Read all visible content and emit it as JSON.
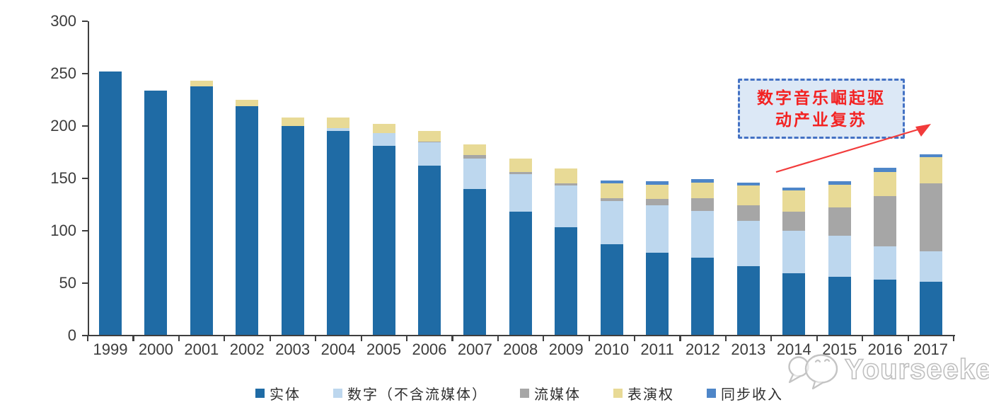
{
  "chart_data": {
    "type": "bar",
    "stacked": true,
    "title": "",
    "xlabel": "",
    "ylabel": "",
    "ylim": [
      0,
      300
    ],
    "y_ticks": [
      0,
      50,
      100,
      150,
      200,
      250,
      300
    ],
    "grid": false,
    "legend_position": "bottom",
    "categories": [
      "1999",
      "2000",
      "2001",
      "2002",
      "2003",
      "2004",
      "2005",
      "2006",
      "2007",
      "2008",
      "2009",
      "2010",
      "2011",
      "2012",
      "2013",
      "2014",
      "2015",
      "2016",
      "2017"
    ],
    "series": [
      {
        "key": "physical",
        "name": "实体",
        "color": "#1f6ba5",
        "values": [
          252,
          234,
          238,
          219,
          200,
          195,
          181,
          162,
          140,
          118,
          103,
          87,
          79,
          74,
          66,
          59,
          56,
          53,
          51
        ]
      },
      {
        "key": "digital-excl-streaming",
        "name": "数字（不含流媒体）",
        "color": "#bdd7ee",
        "values": [
          0,
          0,
          0,
          0,
          0,
          3,
          12,
          22,
          29,
          36,
          40,
          41,
          45,
          45,
          43,
          41,
          39,
          32,
          29
        ]
      },
      {
        "key": "streaming",
        "name": "流媒体",
        "color": "#a6a6a6",
        "values": [
          0,
          0,
          0,
          0,
          0,
          0,
          0,
          1,
          3,
          2,
          2,
          3,
          6,
          12,
          15,
          18,
          27,
          48,
          65
        ]
      },
      {
        "key": "performance-rights",
        "name": "表演权",
        "color": "#e8da96",
        "values": [
          0,
          0,
          5,
          6,
          8,
          10,
          9,
          10,
          10,
          13,
          14,
          14,
          14,
          15,
          19,
          20,
          22,
          23,
          25
        ]
      },
      {
        "key": "sync-revenue",
        "name": "同步收入",
        "color": "#4e86c8",
        "values": [
          0,
          0,
          0,
          0,
          0,
          0,
          0,
          0,
          0,
          0,
          0,
          3,
          3,
          3,
          3,
          3,
          3,
          4,
          3
        ]
      }
    ]
  },
  "annotation": {
    "line1": "数字音乐崛起驱",
    "line2": "动产业复苏",
    "text_color": "#f32222",
    "border_color": "#4472c4",
    "fill_color": "#dce8f6"
  },
  "watermark": {
    "text": "Yourseeker",
    "logo": "chat-bubbles-logo"
  },
  "colors": {
    "axis": "#3f3f3f",
    "tick_label": "#3c3c3c",
    "arrow": "#f23b3b"
  }
}
